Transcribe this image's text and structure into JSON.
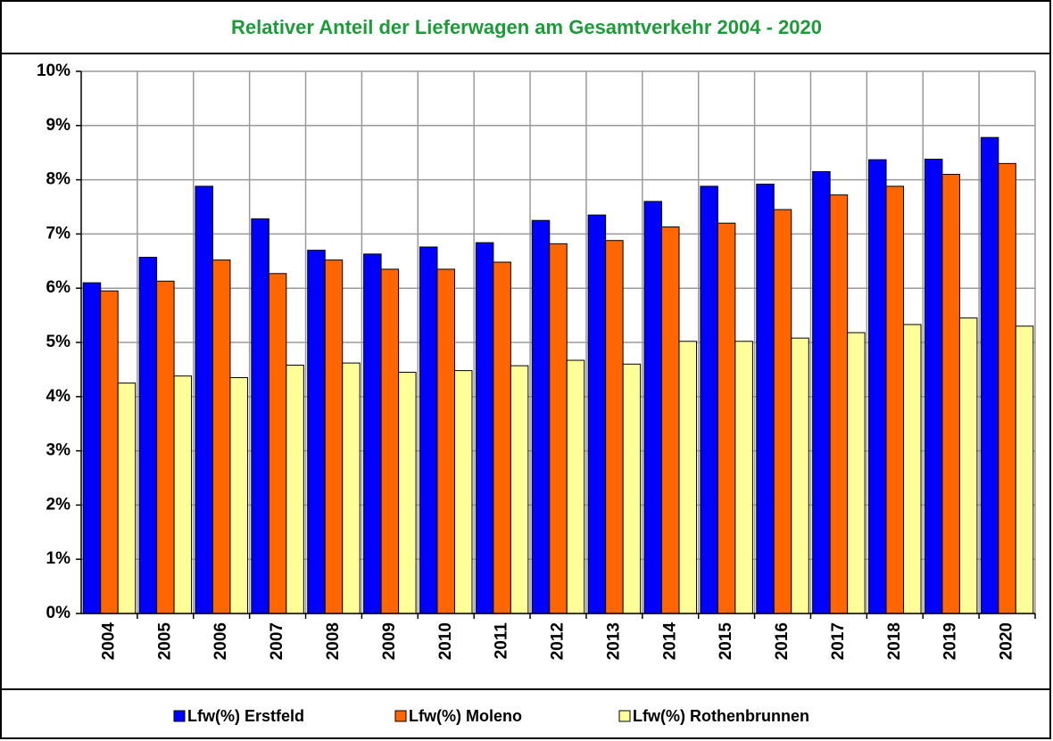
{
  "chart_data": {
    "type": "bar",
    "title": "Relativer Anteil der Lieferwagen am Gesamtverkehr 2004 - 2020",
    "categories": [
      "2004",
      "2005",
      "2006",
      "2007",
      "2008",
      "2009",
      "2010",
      "2011",
      "2012",
      "2013",
      "2014",
      "2015",
      "2016",
      "2017",
      "2018",
      "2019",
      "2020"
    ],
    "series": [
      {
        "name": "Lfw(%) Erstfeld",
        "color": "#0000ff",
        "values": [
          6.1,
          6.57,
          7.88,
          7.28,
          6.7,
          6.63,
          6.76,
          6.84,
          7.25,
          7.35,
          7.6,
          7.88,
          7.92,
          8.15,
          8.37,
          8.38,
          8.78
        ]
      },
      {
        "name": "Lfw(%) Moleno",
        "color": "#ff6600",
        "values": [
          5.95,
          6.13,
          6.52,
          6.27,
          6.52,
          6.35,
          6.35,
          6.48,
          6.82,
          6.88,
          7.13,
          7.2,
          7.45,
          7.72,
          7.88,
          8.1,
          8.3
        ]
      },
      {
        "name": "Lfw(%) Rothenbrunnen",
        "color": "#ffff99",
        "values": [
          4.25,
          4.38,
          4.35,
          4.58,
          4.62,
          4.45,
          4.48,
          4.57,
          4.67,
          4.6,
          5.02,
          5.02,
          5.08,
          5.18,
          5.33,
          5.45,
          5.3
        ]
      }
    ],
    "ylim": [
      0,
      10
    ],
    "yticks": [
      {
        "value": 0,
        "label": "0%"
      },
      {
        "value": 1,
        "label": "1%"
      },
      {
        "value": 2,
        "label": "2%"
      },
      {
        "value": 3,
        "label": "3%"
      },
      {
        "value": 4,
        "label": "4%"
      },
      {
        "value": 5,
        "label": "5%"
      },
      {
        "value": 6,
        "label": "6%"
      },
      {
        "value": 7,
        "label": "7%"
      },
      {
        "value": 8,
        "label": "8%"
      },
      {
        "value": 9,
        "label": "9%"
      },
      {
        "value": 10,
        "label": "10%"
      }
    ],
    "grid": true
  }
}
